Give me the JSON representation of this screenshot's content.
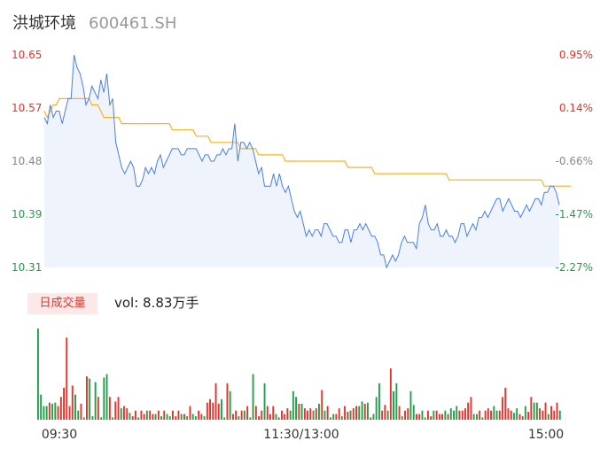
{
  "header": {
    "name": "洪城环境",
    "code": "600461.SH"
  },
  "volume_label": {
    "badge": "日成交量",
    "text": "vol: 8.83万手"
  },
  "colors": {
    "up": "#e5332b",
    "down": "#1fa14a",
    "price_line": "#4a7fe0",
    "avg_line": "#f5b323"
  },
  "chart_data": [
    {
      "type": "line",
      "y_ticks_left": [
        "10.65",
        "10.57",
        "10.48",
        "10.39",
        "10.31"
      ],
      "y_ticks_right": [
        "0.95%",
        "0.14%",
        "-0.66%",
        "-1.47%",
        "-2.27%"
      ],
      "ylim": [
        10.31,
        10.65
      ],
      "series": [
        {
          "values": [
            10.55,
            10.54,
            10.57,
            10.55,
            10.56,
            10.56,
            10.54,
            10.56,
            10.58,
            10.58,
            10.65,
            10.63,
            10.62,
            10.6,
            10.57,
            10.58,
            10.6,
            10.59,
            10.58,
            10.61,
            10.59,
            10.62,
            10.57,
            10.58,
            10.51,
            10.49,
            10.47,
            10.46,
            10.47,
            10.48,
            10.47,
            10.44,
            10.44,
            10.45,
            10.47,
            10.46,
            10.47,
            10.46,
            10.48,
            10.49,
            10.47,
            10.48,
            10.49,
            10.5,
            10.5,
            10.5,
            10.49,
            10.49,
            10.5,
            10.5,
            10.5,
            10.5,
            10.49,
            10.48,
            10.49,
            10.49,
            10.48,
            10.48,
            10.49,
            10.49,
            10.5,
            10.49,
            10.5,
            10.5,
            10.54,
            10.48,
            10.51,
            10.51,
            10.5,
            10.51,
            10.5,
            10.48,
            10.46,
            10.47,
            10.44,
            10.44,
            10.44,
            10.46,
            10.44,
            10.46,
            10.44,
            10.43,
            10.44,
            10.42,
            10.4,
            10.39,
            10.4,
            10.38,
            10.36,
            10.37,
            10.36,
            10.37,
            10.37,
            10.36,
            10.38,
            10.38,
            10.37,
            10.36,
            10.36,
            10.35,
            10.35,
            10.37,
            10.37,
            10.35,
            10.37,
            10.37,
            10.38,
            10.37,
            10.38,
            10.37,
            10.36,
            10.36,
            10.35,
            10.33,
            10.33,
            10.31,
            10.32,
            10.33,
            10.32,
            10.33,
            10.35,
            10.36,
            10.35,
            10.35,
            10.35,
            10.34,
            10.38,
            10.39,
            10.41,
            10.38,
            10.37,
            10.37,
            10.38,
            10.36,
            10.36,
            10.37,
            10.36,
            10.36,
            10.35,
            10.36,
            10.38,
            10.38,
            10.36,
            10.37,
            10.38,
            10.37,
            10.39,
            10.39,
            10.4,
            10.39,
            10.4,
            10.41,
            10.42,
            10.42,
            10.4,
            10.41,
            10.42,
            10.41,
            10.4,
            10.4,
            10.39,
            10.4,
            10.41,
            10.4,
            10.41,
            10.42,
            10.42,
            10.41,
            10.43,
            10.43,
            10.44,
            10.44,
            10.43,
            10.41
          ],
          "x_label": "price"
        },
        {
          "values": [
            10.56,
            10.55,
            10.56,
            10.57,
            10.57,
            10.58,
            10.58,
            10.58,
            10.58,
            10.58,
            10.58,
            10.58,
            10.58,
            10.58,
            10.58,
            10.58,
            10.57,
            10.57,
            10.57,
            10.56,
            10.55,
            10.55,
            10.55,
            10.55,
            10.55,
            10.55,
            10.54,
            10.54,
            10.54,
            10.54,
            10.54,
            10.54,
            10.54,
            10.54,
            10.54,
            10.54,
            10.54,
            10.54,
            10.54,
            10.54,
            10.54,
            10.54,
            10.54,
            10.53,
            10.53,
            10.53,
            10.53,
            10.53,
            10.53,
            10.53,
            10.53,
            10.52,
            10.52,
            10.52,
            10.52,
            10.52,
            10.51,
            10.51,
            10.51,
            10.51,
            10.51,
            10.51,
            10.51,
            10.51,
            10.51,
            10.51,
            10.5,
            10.5,
            10.5,
            10.5,
            10.5,
            10.5,
            10.49,
            10.49,
            10.49,
            10.49,
            10.49,
            10.49,
            10.49,
            10.49,
            10.49,
            10.48,
            10.48,
            10.48,
            10.48,
            10.48,
            10.48,
            10.48,
            10.48,
            10.48,
            10.48,
            10.48,
            10.48,
            10.48,
            10.48,
            10.48,
            10.48,
            10.48,
            10.48,
            10.48,
            10.48,
            10.48,
            10.47,
            10.47,
            10.47,
            10.47,
            10.47,
            10.47,
            10.47,
            10.47,
            10.47,
            10.46,
            10.46,
            10.46,
            10.46,
            10.46,
            10.46,
            10.46,
            10.46,
            10.46,
            10.46,
            10.46,
            10.46,
            10.46,
            10.46,
            10.46,
            10.46,
            10.46,
            10.46,
            10.46,
            10.46,
            10.46,
            10.46,
            10.46,
            10.46,
            10.46,
            10.45,
            10.45,
            10.45,
            10.45,
            10.45,
            10.45,
            10.45,
            10.45,
            10.45,
            10.45,
            10.45,
            10.45,
            10.45,
            10.45,
            10.45,
            10.45,
            10.45,
            10.45,
            10.45,
            10.45,
            10.45,
            10.45,
            10.45,
            10.45,
            10.45,
            10.45,
            10.45,
            10.45,
            10.45,
            10.45,
            10.45,
            10.45,
            10.44,
            10.44,
            10.44,
            10.44,
            10.44,
            10.44,
            10.44,
            10.44,
            10.44,
            10.44
          ],
          "x_label": "avg"
        }
      ]
    },
    {
      "type": "bar",
      "x_ticks": [
        "09:30",
        "11:30/13:00",
        "15:00"
      ],
      "values": [
        80,
        22,
        12,
        12,
        15,
        14,
        15,
        12,
        20,
        28,
        72,
        12,
        30,
        22,
        8,
        14,
        2,
        38,
        36,
        3,
        33,
        20,
        2,
        37,
        40,
        20,
        2,
        16,
        20,
        10,
        12,
        10,
        6,
        3,
        8,
        2,
        8,
        5,
        8,
        8,
        5,
        5,
        8,
        3,
        8,
        5,
        3,
        8,
        3,
        8,
        5,
        5,
        3,
        12,
        5,
        3,
        8,
        5,
        3,
        15,
        18,
        15,
        32,
        14,
        18,
        2,
        32,
        25,
        5,
        8,
        3,
        8,
        8,
        12,
        2,
        40,
        12,
        3,
        8,
        32,
        12,
        5,
        12,
        5,
        2,
        8,
        5,
        10,
        8,
        25,
        20,
        14,
        14,
        10,
        8,
        10,
        8,
        10,
        14,
        26,
        8,
        12,
        2,
        5,
        5,
        10,
        3,
        12,
        7,
        8,
        10,
        12,
        12,
        16,
        14,
        15,
        2,
        5,
        20,
        32,
        8,
        13,
        8,
        45,
        25,
        32,
        12,
        3,
        8,
        10,
        25,
        13,
        5,
        5,
        8,
        2,
        8,
        3,
        8,
        8,
        5,
        5,
        8,
        5,
        10,
        8,
        12,
        8,
        8,
        10,
        15,
        20,
        5,
        5,
        8,
        2,
        8,
        10,
        8,
        12,
        8,
        8,
        20,
        28,
        10,
        8,
        6,
        10,
        5,
        3,
        12,
        7,
        20,
        15,
        15,
        10,
        8,
        15,
        5,
        12,
        8,
        15,
        8
      ],
      "up": [
        0,
        0,
        0,
        0,
        1,
        0,
        0,
        1,
        1,
        1,
        1,
        1,
        1,
        0,
        0,
        1,
        0,
        1,
        0,
        0,
        0,
        1,
        0,
        0,
        0,
        1,
        0,
        1,
        1,
        0,
        1,
        1,
        0,
        1,
        1,
        0,
        1,
        1,
        0,
        1,
        1,
        0,
        1,
        0,
        1,
        0,
        0,
        1,
        1,
        1,
        0,
        1,
        0,
        1,
        0,
        0,
        1,
        1,
        0,
        1,
        1,
        1,
        1,
        1,
        0,
        0,
        1,
        0,
        1,
        1,
        0,
        1,
        0,
        1,
        0,
        0,
        1,
        1,
        1,
        0,
        1,
        1,
        1,
        0,
        1,
        1,
        1,
        1,
        0,
        0,
        0,
        1,
        0,
        1,
        1,
        1,
        0,
        1,
        0,
        1,
        0,
        1,
        0,
        0,
        1,
        1,
        0,
        1,
        1,
        0,
        1,
        1,
        0,
        0,
        1,
        0,
        1,
        0,
        0,
        0,
        1,
        1,
        0,
        1,
        0,
        0,
        1,
        0,
        1,
        1,
        0,
        0,
        1,
        1,
        0,
        0,
        1,
        1,
        0,
        1,
        1,
        1,
        0,
        1,
        0,
        0,
        0,
        1,
        1,
        1,
        1,
        1,
        0,
        0,
        1,
        0,
        1,
        1,
        1,
        0,
        0,
        1,
        1,
        1,
        1,
        1,
        0,
        0,
        1,
        1,
        0,
        1,
        1,
        0,
        0,
        1,
        1,
        1,
        0,
        1,
        1,
        1
      ]
    }
  ]
}
